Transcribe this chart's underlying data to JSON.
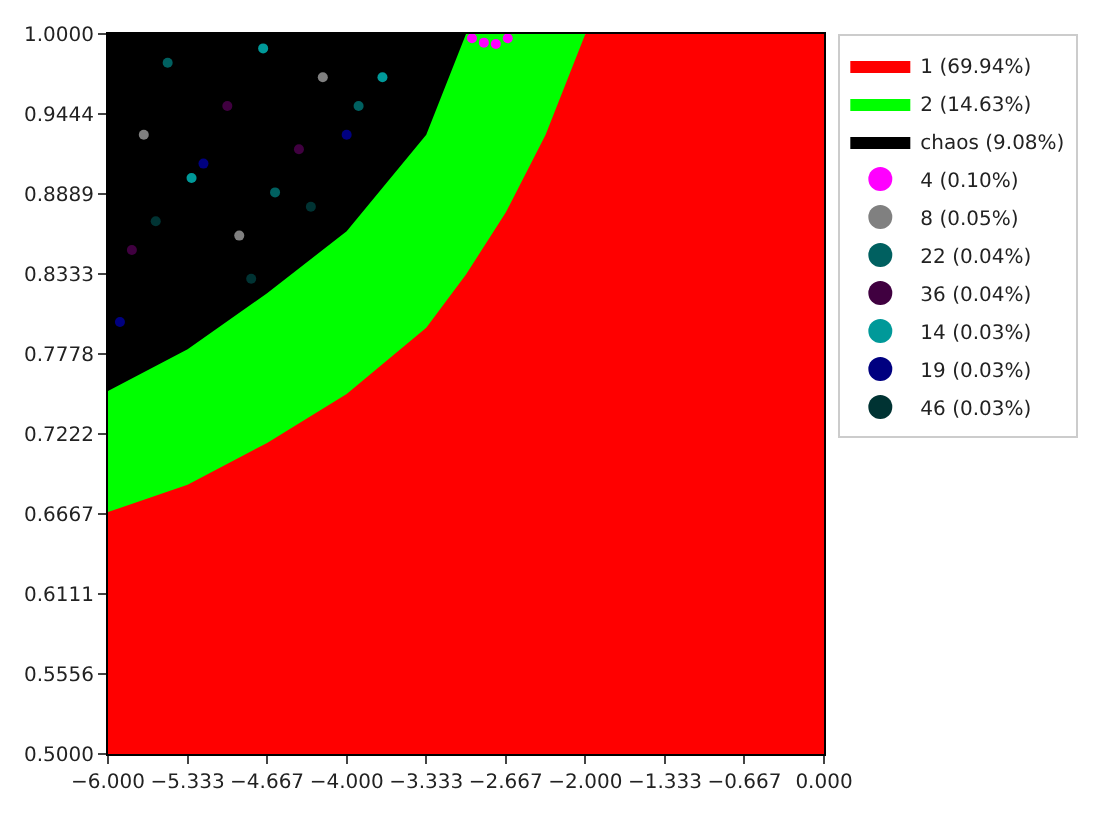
{
  "chart_data": {
    "type": "area",
    "x": [
      -6,
      -5.333,
      -4.667,
      -4,
      -3.333,
      -3,
      -2.667,
      -2.333,
      -2,
      -1.333,
      -0.667,
      0
    ],
    "series": [
      {
        "name": "1 (69.94%)",
        "color": "#ff0000",
        "values": [
          0.668,
          0.687,
          0.716,
          0.75,
          0.796,
          0.833,
          0.876,
          0.93,
          1.0,
          1.0,
          1.0,
          1.0
        ]
      },
      {
        "name": "2 (14.63%)",
        "color": "#00ff00",
        "values": [
          0.752,
          0.781,
          0.82,
          0.863,
          0.93,
          1.0,
          1.0,
          1.0,
          1.0,
          null,
          null,
          null
        ]
      },
      {
        "name": "chaos (9.08%)",
        "color": "#000000",
        "values": [
          1.0,
          1.0,
          1.0,
          1.0,
          1.0,
          1.0,
          null,
          null,
          null,
          null,
          null,
          null
        ]
      },
      {
        "name": "4 (0.10%)",
        "type": "scatter",
        "marker": "circle",
        "color": "#ff00ff",
        "x": [
          -2.95,
          -2.85,
          -2.75,
          -2.65
        ],
        "values": [
          0.997,
          0.994,
          0.993,
          0.997
        ]
      },
      {
        "name": "8 (0.05%)",
        "type": "scatter",
        "marker": "circle",
        "color": "#808080",
        "x": [
          -5.7,
          -4.9,
          -4.2
        ],
        "values": [
          0.93,
          0.86,
          0.97
        ]
      },
      {
        "name": "22 (0.04%)",
        "type": "scatter",
        "marker": "circle",
        "color": "#006060",
        "x": [
          -5.5,
          -4.6,
          -3.9
        ],
        "values": [
          0.98,
          0.89,
          0.95
        ]
      },
      {
        "name": "36 (0.04%)",
        "type": "scatter",
        "marker": "circle",
        "color": "#400040",
        "x": [
          -5.8,
          -5.0,
          -4.4
        ],
        "values": [
          0.85,
          0.95,
          0.92
        ]
      },
      {
        "name": "14 (0.03%)",
        "type": "scatter",
        "marker": "circle",
        "color": "#009999",
        "x": [
          -5.3,
          -4.7,
          -3.7
        ],
        "values": [
          0.9,
          0.99,
          0.97
        ]
      },
      {
        "name": "19 (0.03%)",
        "type": "scatter",
        "marker": "circle",
        "color": "#000080",
        "x": [
          -5.9,
          -5.2,
          -4.0
        ],
        "values": [
          0.8,
          0.91,
          0.93
        ]
      },
      {
        "name": "46 (0.03%)",
        "type": "scatter",
        "marker": "circle",
        "color": "#003333",
        "x": [
          -5.6,
          -4.8,
          -4.3
        ],
        "values": [
          0.87,
          0.83,
          0.88
        ]
      }
    ],
    "xlim": [
      -6,
      0
    ],
    "xticks": [
      {
        "value": -6,
        "label": "−6.000"
      },
      {
        "value": -5.333,
        "label": "−5.333"
      },
      {
        "value": -4.667,
        "label": "−4.667"
      },
      {
        "value": -4,
        "label": "−4.000"
      },
      {
        "value": -3.333,
        "label": "−3.333"
      },
      {
        "value": -2.667,
        "label": "−2.667"
      },
      {
        "value": -2,
        "label": "−2.000"
      },
      {
        "value": -1.333,
        "label": "−1.333"
      },
      {
        "value": -0.667,
        "label": "−0.667"
      },
      {
        "value": 0,
        "label": "0.000"
      }
    ],
    "ylim": [
      0.5,
      1.0
    ],
    "yticks": [
      {
        "value": 0.5,
        "label": "0.5000"
      },
      {
        "value": 0.5556,
        "label": "0.5556"
      },
      {
        "value": 0.6111,
        "label": "0.6111"
      },
      {
        "value": 0.6667,
        "label": "0.6667"
      },
      {
        "value": 0.7222,
        "label": "0.7222"
      },
      {
        "value": 0.7778,
        "label": "0.7778"
      },
      {
        "value": 0.8333,
        "label": "0.8333"
      },
      {
        "value": 0.8889,
        "label": "0.8889"
      },
      {
        "value": 0.9444,
        "label": "0.9444"
      },
      {
        "value": 1.0,
        "label": "1.0000"
      }
    ],
    "legend": "top right"
  }
}
